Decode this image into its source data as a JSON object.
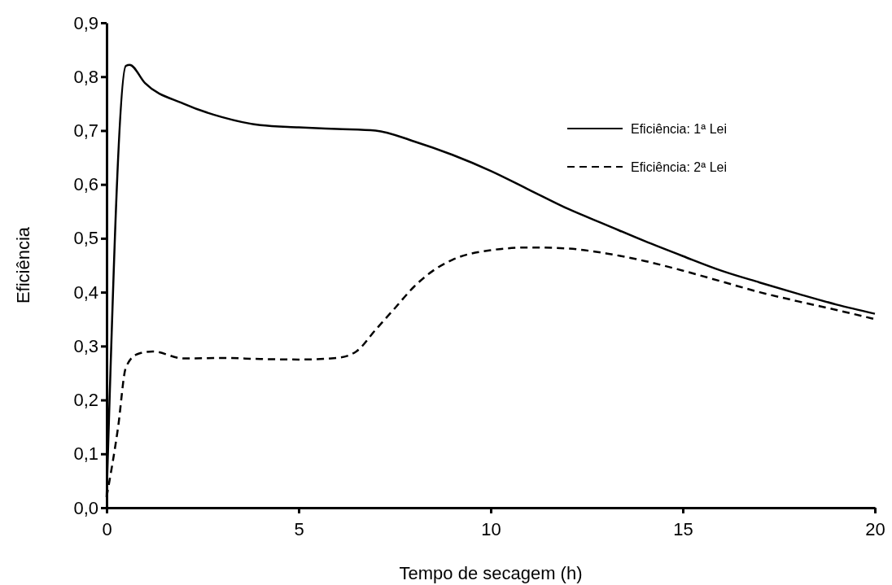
{
  "chart_data": {
    "type": "line",
    "xlabel": "Tempo de secagem (h)",
    "ylabel": "Eficiência",
    "xlim": [
      0,
      20
    ],
    "xticks": [
      0,
      5,
      10,
      15,
      20
    ],
    "ylim": [
      0,
      0.9
    ],
    "yticks": [
      {
        "value": 0,
        "label": "0,0"
      },
      {
        "value": 0.1,
        "label": "0,1"
      },
      {
        "value": 0.2,
        "label": "0,2"
      },
      {
        "value": 0.3,
        "label": "0,3"
      },
      {
        "value": 0.4,
        "label": "0,4"
      },
      {
        "value": 0.5,
        "label": "0,5"
      },
      {
        "value": 0.6,
        "label": "0,6"
      },
      {
        "value": 0.7,
        "label": "0,7"
      },
      {
        "value": 0.8,
        "label": "0,8"
      },
      {
        "value": 0.9,
        "label": "0,9"
      }
    ],
    "grid": false,
    "legend": "top right",
    "marker": "none",
    "series": [
      {
        "name": "Eficiência: 1ª Lei",
        "color": "#000000",
        "line_style": "solid",
        "x": [
          0,
          0.5,
          0.6,
          1,
          2,
          3,
          4,
          5,
          6,
          7,
          8,
          9,
          10,
          11,
          12,
          13,
          14,
          15,
          16,
          17,
          18,
          19,
          20
        ],
        "values": [
          0.02,
          0.82,
          0.822,
          0.788,
          0.75,
          0.725,
          0.71,
          0.706,
          0.703,
          0.7,
          0.68,
          0.655,
          0.625,
          0.59,
          0.555,
          0.525,
          0.495,
          0.467,
          0.44,
          0.418,
          0.397,
          0.377,
          0.36
        ]
      },
      {
        "name": "Eficiência: 2ª Lei",
        "color": "#000000",
        "line_style": "dashed",
        "x": [
          0,
          0.3,
          0.5,
          0.8,
          1.2,
          2,
          3,
          4,
          5,
          6,
          6.5,
          7,
          7.5,
          8,
          8.5,
          9,
          10,
          11,
          12,
          13,
          14,
          15,
          16,
          17,
          18,
          19,
          20
        ],
        "values": [
          0.02,
          0.15,
          0.26,
          0.285,
          0.29,
          0.277,
          0.278,
          0.276,
          0.275,
          0.278,
          0.29,
          0.33,
          0.37,
          0.41,
          0.44,
          0.46,
          0.478,
          0.483,
          0.481,
          0.472,
          0.458,
          0.44,
          0.42,
          0.4,
          0.383,
          0.367,
          0.35
        ]
      }
    ]
  }
}
